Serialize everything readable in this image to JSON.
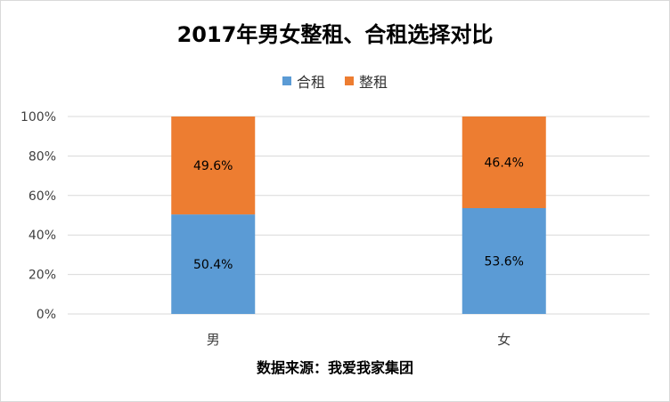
{
  "chart_data": {
    "type": "bar",
    "stacked": true,
    "title": "2017年男女整租、合租选择对比",
    "categories": [
      "男",
      "女"
    ],
    "series": [
      {
        "name": "合租",
        "values": [
          50.4,
          53.6
        ],
        "labels": [
          "50.4%",
          "53.6%"
        ],
        "color": "#5b9bd5"
      },
      {
        "name": "整租",
        "values": [
          49.6,
          46.4
        ],
        "labels": [
          "49.6%",
          "46.4%"
        ],
        "color": "#ed7d31"
      }
    ],
    "ylim": [
      0,
      100
    ],
    "yticks": [
      0,
      20,
      40,
      60,
      80,
      100
    ],
    "ytick_labels": [
      "0%",
      "20%",
      "40%",
      "60%",
      "80%",
      "100%"
    ],
    "grid": true,
    "legend_position": "top",
    "xlabel": "数据来源：我爱我家集团",
    "gridline_color": "#d9d9d9"
  }
}
